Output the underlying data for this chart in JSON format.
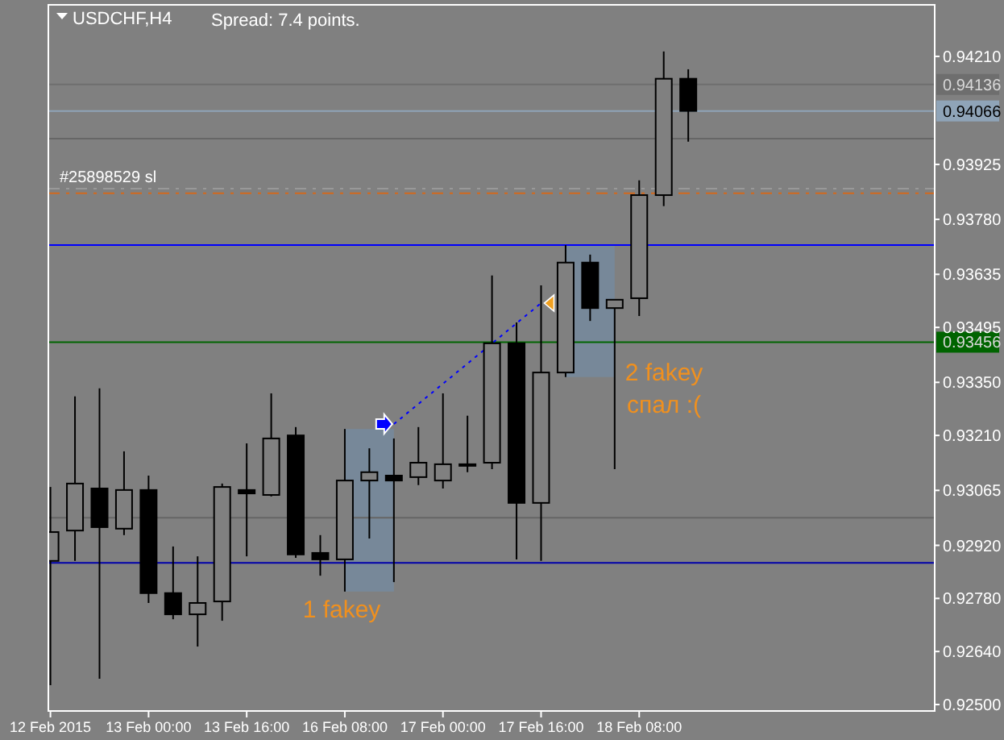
{
  "chart_data": {
    "type": "candlestick",
    "title": "USDCHF,H4",
    "annotations": [
      "Spread: 7.4 points.",
      "1 fakey",
      "2 fakey",
      "спал :("
    ],
    "categories": [
      "12 Feb 2015",
      null,
      null,
      null,
      "13 Feb 00:00",
      null,
      null,
      null,
      "13 Feb 16:00",
      null,
      null,
      null,
      "16 Feb 08:00",
      null,
      null,
      null,
      "17 Feb 00:00",
      null,
      null,
      null,
      "17 Feb 16:00",
      null,
      null,
      null,
      "18 Feb 08:00",
      null,
      null,
      null,
      null,
      null,
      null,
      null,
      null,
      null,
      null,
      null,
      null
    ],
    "ohlc": [
      [
        0.92879,
        0.93074,
        0.92551,
        0.92955
      ],
      [
        0.92959,
        0.93313,
        0.92879,
        0.93083
      ],
      [
        0.9307,
        0.93334,
        0.92568,
        0.92968
      ],
      [
        0.92964,
        0.93168,
        0.92947,
        0.93066
      ],
      [
        0.93066,
        0.93104,
        0.92768,
        0.92794
      ],
      [
        0.92794,
        0.92917,
        0.92725,
        0.92738
      ],
      [
        0.92738,
        0.92891,
        0.92653,
        0.92768
      ],
      [
        0.92772,
        0.93083,
        0.92721,
        0.93074
      ],
      [
        0.93066,
        0.93189,
        0.92891,
        0.93057
      ],
      [
        0.93053,
        0.93321,
        0.93049,
        0.93202
      ],
      [
        0.9321,
        0.93232,
        0.92887,
        0.92896
      ],
      [
        0.929,
        0.92947,
        0.9284,
        0.92883
      ],
      [
        0.92883,
        0.93227,
        0.92798,
        0.93091
      ],
      [
        0.93091,
        0.93176,
        0.92938,
        0.93113
      ],
      [
        0.93104,
        0.93202,
        0.92823,
        0.93091
      ],
      [
        0.931,
        0.93232,
        0.93079,
        0.93138
      ],
      [
        0.93091,
        0.93321,
        0.9307,
        0.93134
      ],
      [
        0.93134,
        0.93262,
        0.93113,
        0.93134
      ],
      [
        0.93138,
        0.93632,
        0.93121,
        0.93453
      ],
      [
        0.93453,
        0.93508,
        0.92883,
        0.93032
      ],
      [
        0.93032,
        0.93606,
        0.92879,
        0.93376
      ],
      [
        0.93376,
        0.93712,
        0.93364,
        0.93666
      ],
      [
        0.93666,
        0.93687,
        0.93512,
        0.93546
      ],
      [
        0.93546,
        0.93568,
        0.93121,
        0.93568
      ],
      [
        0.93572,
        0.93883,
        0.93525,
        0.93844
      ],
      [
        0.93844,
        0.94223,
        0.93815,
        0.94151
      ],
      [
        0.94151,
        0.94176,
        0.93985,
        0.94066
      ],
      null,
      null,
      null,
      null,
      null,
      null,
      null,
      null,
      null,
      null
    ],
    "series": [
      {
        "type": "bar",
        "color": "#778899",
        "base": [
          null,
          null,
          null,
          null,
          null,
          null,
          null,
          null,
          null,
          null,
          null,
          null,
          null,
          0.92798,
          null,
          null,
          null,
          null,
          null,
          null,
          null,
          null,
          0.93364,
          null,
          null,
          null,
          null,
          null,
          null,
          null,
          null,
          null,
          null,
          null,
          null,
          null,
          null
        ],
        "values": [
          null,
          null,
          null,
          null,
          null,
          null,
          null,
          null,
          null,
          null,
          null,
          null,
          null,
          0.00429,
          null,
          null,
          null,
          null,
          null,
          null,
          null,
          null,
          0.00348,
          null,
          null,
          null,
          null,
          null,
          null,
          null,
          null,
          null,
          null,
          null,
          null,
          null,
          null
        ]
      },
      {
        "type": "line",
        "color": "#0000ff",
        "line_style": "dotted",
        "values": [
          null,
          null,
          null,
          null,
          null,
          null,
          null,
          null,
          null,
          null,
          null,
          null,
          null,
          null,
          0.9324,
          null,
          null,
          null,
          null,
          null,
          0.93559,
          null,
          null,
          null,
          null,
          null,
          null,
          null,
          null,
          null,
          null,
          null,
          null,
          null,
          null,
          null,
          null
        ]
      }
    ],
    "ref_lines": [
      {
        "axis": "y",
        "value": 0.94136,
        "label": "0.94136",
        "color": "#6e6e6e"
      },
      {
        "axis": "y",
        "value": 0.94066,
        "label": "0.94066",
        "color": "#8fa4b8"
      },
      {
        "axis": "y",
        "value": 0.93993,
        "color": "#666666"
      },
      {
        "axis": "y",
        "value": 0.93861,
        "label": "#25898529 sl",
        "color": "#999999",
        "line_style": "dashed"
      },
      {
        "axis": "y",
        "value": 0.93849,
        "color": "#d2691e",
        "line_style": "dashed"
      },
      {
        "axis": "y",
        "value": 0.93712,
        "color": "#0000ff"
      },
      {
        "axis": "y",
        "value": 0.93456,
        "label": "0.93456",
        "color": "#006400"
      },
      {
        "axis": "y",
        "value": 0.92993,
        "color": "#666666"
      },
      {
        "axis": "y",
        "value": 0.92874,
        "color": "#0000aa"
      }
    ],
    "ylim": [
      0.92483,
      0.94346
    ],
    "yticks": [
      {
        "value": 0.9421,
        "label": "0.94210"
      },
      {
        "value": 0.93925,
        "label": "0.93925"
      },
      {
        "value": 0.9378,
        "label": "0.93780"
      },
      {
        "value": 0.93635,
        "label": "0.93635"
      },
      {
        "value": 0.93495,
        "label": "0.93495"
      },
      {
        "value": 0.9335,
        "label": "0.93350"
      },
      {
        "value": 0.9321,
        "label": "0.93210"
      },
      {
        "value": 0.93065,
        "label": "0.93065"
      },
      {
        "value": 0.9292,
        "label": "0.92920"
      },
      {
        "value": 0.9278,
        "label": "0.92780"
      },
      {
        "value": 0.9264,
        "label": "0.92640"
      },
      {
        "value": 0.925,
        "label": "0.92500"
      }
    ],
    "grid": false
  }
}
